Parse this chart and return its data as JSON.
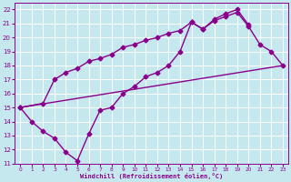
{
  "xlabel": "Windchill (Refroidissement éolien,°C)",
  "bg_color": "#c5e8ef",
  "line_color": "#8b008b",
  "grid_color": "#ffffff",
  "xlim": [
    -0.5,
    23.5
  ],
  "ylim": [
    11,
    22.5
  ],
  "xticks": [
    0,
    1,
    2,
    3,
    4,
    5,
    6,
    7,
    8,
    9,
    10,
    11,
    12,
    13,
    14,
    15,
    16,
    17,
    18,
    19,
    20,
    21,
    22,
    23
  ],
  "yticks": [
    11,
    12,
    13,
    14,
    15,
    16,
    17,
    18,
    19,
    20,
    21,
    22
  ],
  "line1_x": [
    0,
    2,
    3,
    4,
    5,
    6,
    7,
    8,
    9,
    10,
    11,
    12,
    13,
    14,
    15,
    16,
    17,
    18,
    19,
    20,
    21,
    22,
    23
  ],
  "line1_y": [
    15.0,
    15.3,
    17.0,
    17.5,
    17.8,
    18.3,
    18.5,
    18.8,
    19.3,
    19.5,
    19.8,
    20.0,
    20.3,
    20.5,
    21.1,
    20.6,
    21.2,
    21.5,
    21.8,
    20.8,
    19.5,
    19.0,
    18.0
  ],
  "line2_x": [
    0,
    1,
    2,
    3,
    4,
    5,
    6,
    7,
    8,
    9,
    10,
    11,
    12,
    13,
    14,
    15,
    16,
    17,
    18,
    19,
    20
  ],
  "line2_y": [
    15.0,
    14.0,
    13.3,
    12.8,
    11.8,
    11.2,
    13.1,
    14.8,
    15.0,
    16.0,
    16.5,
    17.2,
    17.5,
    18.0,
    19.0,
    21.1,
    20.6,
    21.3,
    21.7,
    22.0,
    20.9
  ],
  "line3_x": [
    0,
    23
  ],
  "line3_y": [
    15.0,
    18.0
  ],
  "marker": "D",
  "markersize": 2.5,
  "linewidth": 1.0
}
